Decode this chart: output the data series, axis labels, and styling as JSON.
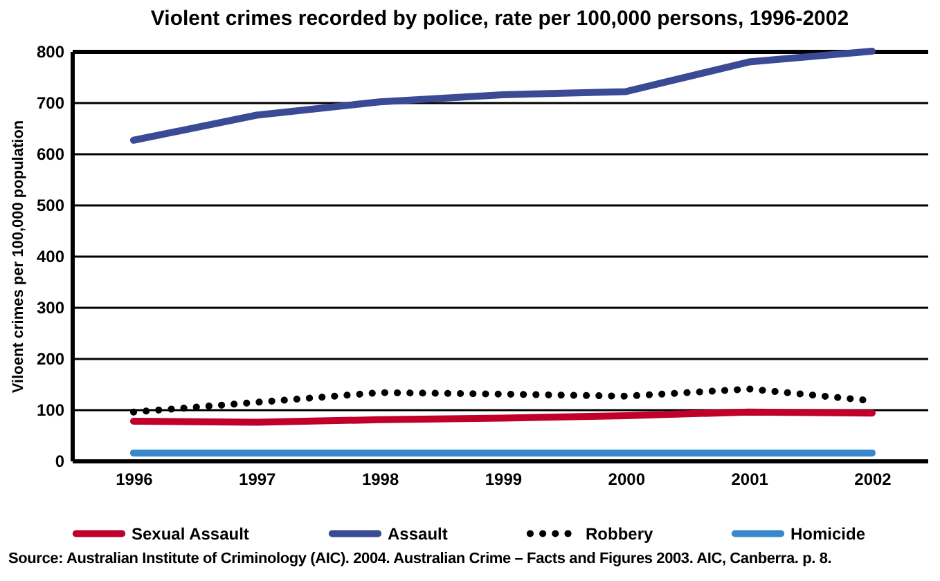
{
  "chart_data": {
    "type": "line",
    "title": "Violent crimes recorded by police, rate per 100,000 persons, 1996-2002",
    "ylabel": "Viloent crimes per 100,000 population",
    "categories": [
      "1996",
      "1997",
      "1998",
      "1999",
      "2000",
      "2001",
      "2002"
    ],
    "series": [
      {
        "name": "Sexual Assault",
        "color": "#c0002a",
        "values": [
          77,
          75,
          80,
          83,
          88,
          95,
          93
        ]
      },
      {
        "name": "Assault",
        "color": "#3a4a94",
        "values": [
          626,
          675,
          701,
          715,
          721,
          779,
          800
        ]
      },
      {
        "name": "Robbery",
        "color": "#000000",
        "line_style": "dotted",
        "values": [
          95,
          114,
          133,
          130,
          126,
          140,
          117
        ]
      },
      {
        "name": "Homicide",
        "color": "#3a88cc",
        "values": [
          15,
          15,
          15,
          15,
          15,
          15,
          15
        ]
      }
    ],
    "ylim": [
      0,
      800
    ],
    "yticks": [
      0,
      100,
      200,
      300,
      400,
      500,
      600,
      700,
      800
    ],
    "grid": "y",
    "legend": "bottom",
    "line_style": "solid",
    "annotations": [
      "Source: Australian Institute of Criminology (AIC). 2004. Australian Crime – Facts and Figures 2003. AIC, Canberra. p. 8."
    ]
  }
}
